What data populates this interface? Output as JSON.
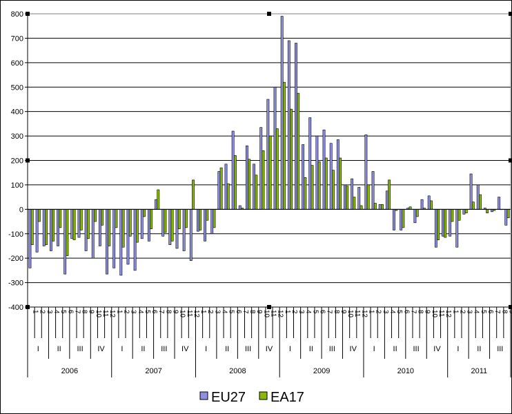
{
  "chart_data": {
    "type": "bar",
    "ylim": [
      -400,
      800
    ],
    "yticks": [
      -400,
      -300,
      -200,
      -100,
      0,
      100,
      200,
      300,
      400,
      500,
      600,
      700,
      800
    ],
    "grid": true,
    "legend_position": "bottom",
    "years": [
      {
        "label": "2006",
        "quarters": [
          "I",
          "II",
          "III",
          "IV"
        ],
        "months": [
          "1",
          "2",
          "3",
          "4",
          "5",
          "6",
          "7",
          "8",
          "9",
          "10",
          "11",
          "12"
        ]
      },
      {
        "label": "2007",
        "quarters": [
          "I",
          "II",
          "III",
          "IV"
        ],
        "months": [
          "1",
          "2",
          "3",
          "4",
          "5",
          "6",
          "7",
          "8",
          "9",
          "10",
          "11",
          "12"
        ]
      },
      {
        "label": "2008",
        "quarters": [
          "I",
          "II",
          "III",
          "IV"
        ],
        "months": [
          "1",
          "2",
          "3",
          "4",
          "5",
          "6",
          "7",
          "8",
          "9",
          "10",
          "11",
          "12"
        ]
      },
      {
        "label": "2009",
        "quarters": [
          "I",
          "II",
          "III",
          "IV"
        ],
        "months": [
          "1",
          "2",
          "3",
          "4",
          "5",
          "6",
          "7",
          "8",
          "9",
          "10",
          "11",
          "12"
        ]
      },
      {
        "label": "2010",
        "quarters": [
          "I",
          "II",
          "III",
          "IV"
        ],
        "months": [
          "1",
          "2",
          "3",
          "4",
          "5",
          "6",
          "7",
          "8",
          "9",
          "10",
          "11",
          "12"
        ]
      },
      {
        "label": "2011",
        "quarters": [
          "I",
          "II",
          "III"
        ],
        "months": [
          "1",
          "2",
          "3",
          "4",
          "5",
          "6",
          "7",
          "8",
          "9"
        ]
      }
    ],
    "series": [
      {
        "name": "EU27",
        "color": "#8f8fe0",
        "values": [
          -240,
          -175,
          -150,
          -170,
          -150,
          -265,
          -120,
          -115,
          -170,
          -200,
          -150,
          -265,
          -240,
          -270,
          -225,
          -250,
          -120,
          -130,
          40,
          -110,
          -145,
          -160,
          -170,
          -210,
          -90,
          -130,
          -100,
          155,
          185,
          320,
          15,
          260,
          185,
          335,
          450,
          500,
          790,
          690,
          680,
          265,
          375,
          300,
          325,
          270,
          285,
          100,
          125,
          90,
          305,
          155,
          20,
          75,
          -85,
          -85,
          5,
          -55,
          40,
          55,
          -155,
          -110,
          -110,
          -155,
          -20,
          145,
          100,
          5,
          -10,
          50,
          -65
        ]
      },
      {
        "name": "EA17",
        "color": "#88b800",
        "values": [
          -145,
          -50,
          -145,
          -130,
          -75,
          -190,
          -125,
          -85,
          -120,
          -50,
          -65,
          -150,
          -75,
          -155,
          -110,
          -135,
          -30,
          -80,
          80,
          -95,
          -130,
          -80,
          -75,
          120,
          -85,
          -45,
          -75,
          170,
          105,
          220,
          5,
          205,
          140,
          240,
          300,
          330,
          520,
          410,
          475,
          130,
          180,
          195,
          210,
          160,
          210,
          95,
          50,
          15,
          100,
          25,
          20,
          120,
          -5,
          -75,
          10,
          -30,
          5,
          35,
          -125,
          -115,
          -50,
          -45,
          -15,
          30,
          60,
          -15,
          -5,
          0,
          -35
        ]
      }
    ]
  }
}
